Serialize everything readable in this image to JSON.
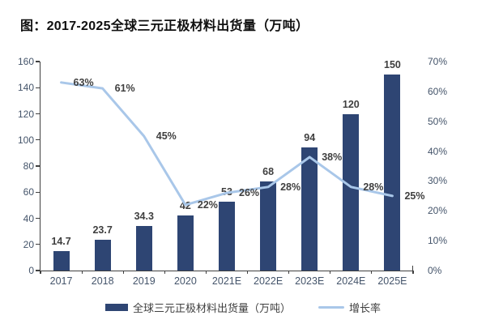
{
  "title": "图：2017-2025全球三元正极材料出货量（万吨）",
  "colors": {
    "bar": "#2E4573",
    "line": "#A9C7E9",
    "axis_line": "#404040",
    "axis_text": "#44546A",
    "data_label_text": "#3F3F3F",
    "title_text": "#0F0F0F",
    "background": "#FFFFFF"
  },
  "chart_data": {
    "type": "bar+line combo",
    "title": "图：2017-2025全球三元正极材料出货量（万吨）",
    "categories": [
      "2017",
      "2018",
      "2019",
      "2020",
      "2021E",
      "2022E",
      "2023E",
      "2024E",
      "2025E"
    ],
    "series": [
      {
        "name": "全球三元正极材料出货量（万吨）",
        "type": "bar",
        "axis": "left",
        "values": [
          14.7,
          23.7,
          34.3,
          42,
          53,
          68,
          94,
          120,
          150
        ],
        "labels": [
          "14.7",
          "23.7",
          "34.3",
          "42",
          "53",
          "68",
          "94",
          "120",
          "150"
        ]
      },
      {
        "name": "增长率",
        "type": "line",
        "axis": "right",
        "values": [
          63,
          61,
          45,
          22,
          26,
          28,
          38,
          28,
          25
        ],
        "labels": [
          "63%",
          "61%",
          "45%",
          "22%",
          "26%",
          "28%",
          "38%",
          "28%",
          "25%"
        ]
      }
    ],
    "left_axis": {
      "min": 0,
      "max": 160,
      "step": 20,
      "ticks": [
        "0",
        "20",
        "40",
        "60",
        "80",
        "100",
        "120",
        "140",
        "160"
      ]
    },
    "right_axis": {
      "min": 0,
      "max": 70,
      "step": 10,
      "ticks": [
        "0%",
        "10%",
        "20%",
        "30%",
        "40%",
        "50%",
        "60%",
        "70%"
      ]
    },
    "grid": false,
    "legend_position": "bottom"
  },
  "legend": {
    "items": [
      {
        "label": "全球三元正极材料出货量（万吨）",
        "swatch": "bar"
      },
      {
        "label": "增长率",
        "swatch": "line"
      }
    ]
  }
}
